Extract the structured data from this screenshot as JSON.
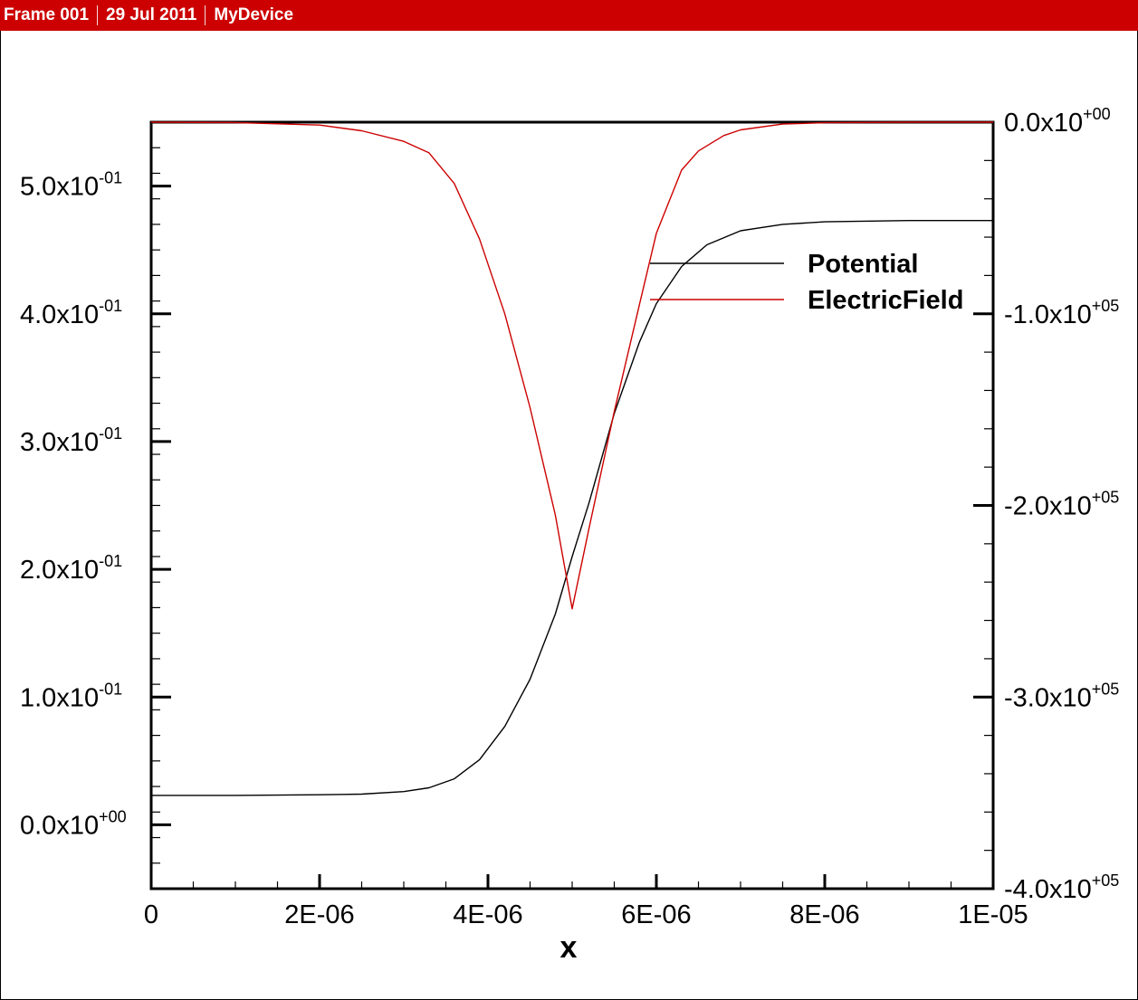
{
  "header": {
    "frame": "Frame 001",
    "date": "29 Jul 2011",
    "device": "MyDevice"
  },
  "chart_data": {
    "type": "line",
    "xlabel": "x",
    "xlim": [
      0,
      1e-05
    ],
    "x_ticks": [
      {
        "v": 0,
        "label": "0"
      },
      {
        "v": 2e-06,
        "label": "2E-06"
      },
      {
        "v": 4e-06,
        "label": "4E-06"
      },
      {
        "v": 6e-06,
        "label": "6E-06"
      },
      {
        "v": 8e-06,
        "label": "8E-06"
      },
      {
        "v": 1e-05,
        "label": "1E-05"
      }
    ],
    "ylim_left": [
      -0.05,
      0.55
    ],
    "y_ticks_left": [
      {
        "v": 0.0,
        "mant": "0.0x10",
        "exp": "+00"
      },
      {
        "v": 0.1,
        "mant": "1.0x10",
        "exp": "-01"
      },
      {
        "v": 0.2,
        "mant": "2.0x10",
        "exp": "-01"
      },
      {
        "v": 0.3,
        "mant": "3.0x10",
        "exp": "-01"
      },
      {
        "v": 0.4,
        "mant": "4.0x10",
        "exp": "-01"
      },
      {
        "v": 0.5,
        "mant": "5.0x10",
        "exp": "-01"
      }
    ],
    "ylim_right": [
      -400000,
      0
    ],
    "y_ticks_right": [
      {
        "v": 0,
        "mant": "0.0x10",
        "exp": "+00"
      },
      {
        "v": -100000,
        "mant": "-1.0x10",
        "exp": "+05"
      },
      {
        "v": -200000,
        "mant": "-2.0x10",
        "exp": "+05"
      },
      {
        "v": -300000,
        "mant": "-3.0x10",
        "exp": "+05"
      },
      {
        "v": -400000,
        "mant": "-4.0x10",
        "exp": "+05"
      }
    ],
    "legend": {
      "placement": "upper-right",
      "entries": [
        {
          "name": "Potential",
          "color": "#000000"
        },
        {
          "name": "ElectricField",
          "color": "#cc0000"
        }
      ]
    },
    "series": [
      {
        "name": "Potential",
        "axis": "left",
        "color": "#000000",
        "x": [
          0,
          1e-06,
          2e-06,
          2.5e-06,
          3e-06,
          3.3e-06,
          3.6e-06,
          3.9e-06,
          4.2e-06,
          4.5e-06,
          4.8e-06,
          5e-06,
          5.2e-06,
          5.5e-06,
          5.8e-06,
          6e-06,
          6.3e-06,
          6.6e-06,
          7e-06,
          7.5e-06,
          8e-06,
          9e-06,
          1e-05
        ],
        "y": [
          0.023,
          0.023,
          0.0235,
          0.024,
          0.026,
          0.029,
          0.036,
          0.051,
          0.077,
          0.114,
          0.165,
          0.21,
          0.252,
          0.322,
          0.378,
          0.408,
          0.437,
          0.454,
          0.465,
          0.47,
          0.472,
          0.473,
          0.473
        ]
      },
      {
        "name": "ElectricField",
        "axis": "right",
        "color": "#cc0000",
        "x": [
          0,
          1e-06,
          2e-06,
          2.5e-06,
          3e-06,
          3.3e-06,
          3.6e-06,
          3.9e-06,
          4.2e-06,
          4.5e-06,
          4.8e-06,
          5e-06,
          5.2e-06,
          5.5e-06,
          5.8e-06,
          6e-06,
          6.3e-06,
          6.5e-06,
          6.8e-06,
          7e-06,
          7.5e-06,
          8e-06,
          9e-06,
          1e-05
        ],
        "y": [
          0,
          -200,
          -1500,
          -4500,
          -10000,
          -16000,
          -32000,
          -61000,
          -100000,
          -149000,
          -205000,
          -254000,
          -212000,
          -151000,
          -95000,
          -58000,
          -25000,
          -15000,
          -7000,
          -4000,
          -1000,
          -300,
          0,
          0
        ]
      }
    ]
  }
}
